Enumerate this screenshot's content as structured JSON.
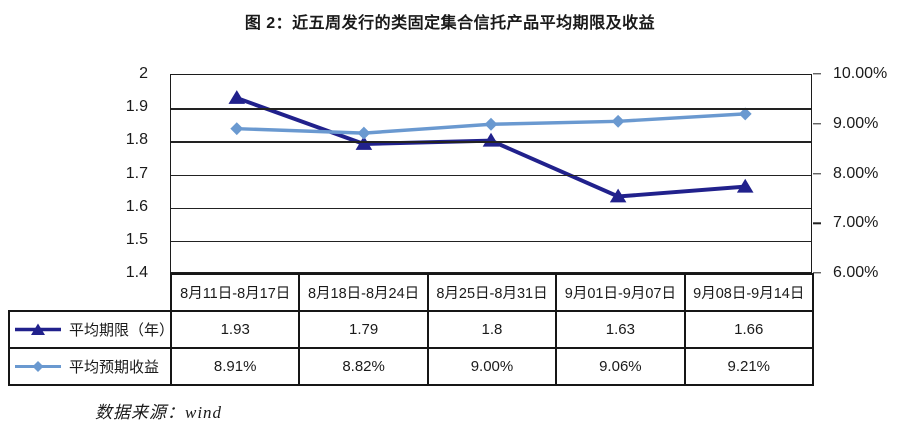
{
  "title": "图 2：近五周发行的类固定集合信托产品平均期限及收益",
  "source_note": "数据来源：wind",
  "colors": {
    "term_series": "#21218c",
    "yield_series": "#6a99d0",
    "grid": "#222222",
    "table_border": "#161616",
    "text": "#1a1a1a"
  },
  "chart_data": {
    "type": "line",
    "title": "图 2：近五周发行的类固定集合信托产品平均期限及收益",
    "categories": [
      "8月11日-8月17日",
      "8月18日-8月24日",
      "8月25日-8月31日",
      "9月01日-9月07日",
      "9月08日-9月14日"
    ],
    "series": [
      {
        "name": "平均期限（年）",
        "axis": "left",
        "marker": "triangle",
        "color": "#21218c",
        "line_width": 4,
        "values": [
          1.93,
          1.79,
          1.8,
          1.63,
          1.66
        ]
      },
      {
        "name": "平均预期收益",
        "axis": "right",
        "marker": "diamond",
        "color": "#6a99d0",
        "line_width": 3.5,
        "values": [
          8.91,
          8.82,
          9.0,
          9.06,
          9.21
        ]
      }
    ],
    "left_axis": {
      "min": 1.4,
      "max": 2.0,
      "tick_labels": [
        "2",
        "1.9",
        "1.8",
        "1.7",
        "1.6",
        "1.5",
        "1.4"
      ]
    },
    "right_axis": {
      "min": 6,
      "max": 10,
      "tick_labels": [
        "10.00%",
        "9.00%",
        "8.00%",
        "7.00%",
        "6.00%"
      ]
    },
    "grid": true,
    "legend_position": "table-left"
  },
  "table": {
    "rows": [
      {
        "label": "平均期限（年）",
        "marker": "triangle",
        "color": "#21218c",
        "cells": [
          "1.93",
          "1.79",
          "1.8",
          "1.63",
          "1.66"
        ]
      },
      {
        "label": "平均预期收益",
        "marker": "diamond",
        "color": "#6a99d0",
        "cells": [
          "8.91%",
          "8.82%",
          "9.00%",
          "9.06%",
          "9.21%"
        ]
      }
    ]
  }
}
